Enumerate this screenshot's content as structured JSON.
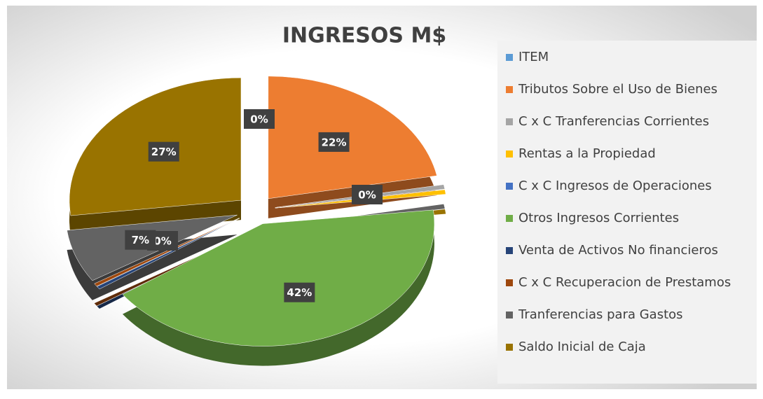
{
  "chart_data": {
    "type": "pie",
    "title": "INGRESOS M$",
    "categories": [
      "ITEM",
      "Tributos Sobre el Uso de Bienes",
      "C x C Tranferencias Corrientes",
      "Rentas a la Propiedad",
      "C x C Ingresos de Operaciones",
      "Otros Ingresos Corrientes",
      "Venta de Activos No financieros",
      "C x C Recuperacion de Prestamos",
      "Tranferencias para Gastos",
      "Saldo Inicial de Caja"
    ],
    "values": [
      0,
      22,
      0.6,
      0.6,
      0,
      42,
      0.4,
      0.4,
      7,
      27
    ],
    "value_labels": [
      "0%",
      "22%",
      null,
      null,
      null,
      "42%",
      "0%",
      "0%",
      "7%",
      "27%"
    ],
    "colors": [
      "#5b9bd5",
      "#ed7d31",
      "#a5a5a5",
      "#ffc000",
      "#4472c4",
      "#70ad47",
      "#264478",
      "#9e480e",
      "#636363",
      "#997300"
    ],
    "legend": "right"
  }
}
